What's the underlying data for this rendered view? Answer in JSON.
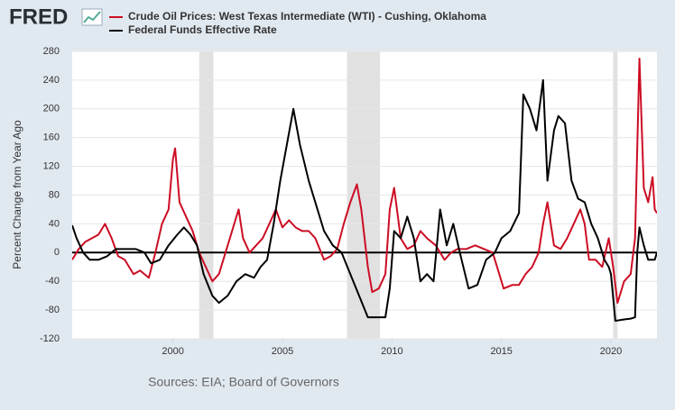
{
  "logo": "FRED",
  "chart_data": {
    "type": "line",
    "source": "Sources: EIA; Board of Governors",
    "ylabel": "Percent Change from Year Ago",
    "xlim": [
      1995.4,
      2022.1
    ],
    "xticks": [
      2000,
      2005,
      2010,
      2015,
      2020
    ],
    "ylim": [
      -120,
      280
    ],
    "yticks": [
      -120,
      -80,
      -40,
      0,
      40,
      80,
      120,
      160,
      200,
      240,
      280
    ],
    "grid": true,
    "recession_color": "#e1e1e1",
    "recessions": [
      [
        2001.2,
        2001.85
      ],
      [
        2007.95,
        2009.45
      ],
      [
        2020.1,
        2020.3
      ]
    ],
    "series": [
      {
        "name": "Crude Oil Prices: West Texas Intermediate (WTI) - Cushing, Oklahoma",
        "color": "#cc0d24",
        "x": [
          1995.4,
          1995.7,
          1996.0,
          1996.3,
          1996.6,
          1996.9,
          1997.2,
          1997.5,
          1997.8,
          1998.2,
          1998.5,
          1998.9,
          1999.2,
          1999.5,
          1999.8,
          2000.0,
          2000.1,
          2000.3,
          2000.6,
          2000.9,
          2001.2,
          2001.5,
          2001.8,
          2002.1,
          2002.4,
          2002.7,
          2003.0,
          2003.2,
          2003.5,
          2003.8,
          2004.1,
          2004.4,
          2004.7,
          2005.0,
          2005.3,
          2005.6,
          2005.9,
          2006.2,
          2006.5,
          2006.9,
          2007.2,
          2007.5,
          2007.8,
          2008.1,
          2008.4,
          2008.6,
          2008.9,
          2009.1,
          2009.4,
          2009.7,
          2009.9,
          2010.1,
          2010.4,
          2010.7,
          2011.0,
          2011.3,
          2011.6,
          2012.0,
          2012.4,
          2012.7,
          2013.0,
          2013.4,
          2013.8,
          2014.2,
          2014.6,
          2014.9,
          2015.1,
          2015.5,
          2015.8,
          2016.1,
          2016.4,
          2016.7,
          2016.9,
          2017.1,
          2017.4,
          2017.7,
          2018.0,
          2018.3,
          2018.6,
          2018.8,
          2019.0,
          2019.3,
          2019.6,
          2019.9,
          2020.1,
          2020.3,
          2020.6,
          2020.9,
          2021.1,
          2021.3,
          2021.5,
          2021.7,
          2021.9,
          2022.0,
          2022.1
        ],
        "values": [
          -10,
          5,
          15,
          20,
          25,
          40,
          20,
          -5,
          -10,
          -30,
          -25,
          -35,
          0,
          40,
          60,
          130,
          145,
          70,
          50,
          30,
          0,
          -20,
          -40,
          -30,
          0,
          30,
          60,
          20,
          0,
          10,
          20,
          40,
          60,
          35,
          45,
          35,
          30,
          30,
          20,
          -10,
          -5,
          5,
          40,
          70,
          95,
          60,
          -20,
          -55,
          -50,
          -30,
          60,
          90,
          20,
          5,
          10,
          30,
          20,
          10,
          -10,
          0,
          5,
          5,
          10,
          5,
          0,
          -30,
          -50,
          -45,
          -45,
          -30,
          -20,
          0,
          40,
          70,
          10,
          5,
          20,
          40,
          60,
          40,
          -10,
          -10,
          -20,
          20,
          -20,
          -70,
          -40,
          -30,
          20,
          270,
          90,
          70,
          105,
          60,
          55
        ]
      },
      {
        "name": "Federal Funds Effective Rate",
        "color": "#000000",
        "x": [
          1995.4,
          1995.6,
          1995.9,
          1996.2,
          1996.6,
          1997.0,
          1997.4,
          1997.8,
          1998.3,
          1998.7,
          1999.0,
          1999.4,
          1999.8,
          2000.2,
          2000.5,
          2000.8,
          2001.1,
          2001.4,
          2001.8,
          2002.1,
          2002.5,
          2002.9,
          2003.3,
          2003.7,
          2004.0,
          2004.3,
          2004.6,
          2004.9,
          2005.2,
          2005.5,
          2005.8,
          2006.2,
          2006.6,
          2006.9,
          2007.3,
          2007.7,
          2008.1,
          2008.5,
          2008.9,
          2009.3,
          2009.7,
          2009.9,
          2010.1,
          2010.4,
          2010.7,
          2011.0,
          2011.3,
          2011.6,
          2011.9,
          2012.2,
          2012.5,
          2012.8,
          2013.1,
          2013.5,
          2013.9,
          2014.3,
          2014.7,
          2015.0,
          2015.4,
          2015.8,
          2016.0,
          2016.3,
          2016.6,
          2016.9,
          2017.1,
          2017.4,
          2017.6,
          2017.9,
          2018.2,
          2018.5,
          2018.8,
          2019.1,
          2019.4,
          2019.7,
          2019.9,
          2020.0,
          2020.2,
          2020.6,
          2020.9,
          2021.1,
          2021.2,
          2021.3,
          2021.5,
          2021.7,
          2022.0,
          2022.1
        ],
        "values": [
          38,
          20,
          0,
          -10,
          -10,
          -5,
          5,
          5,
          5,
          0,
          -15,
          -10,
          10,
          25,
          35,
          25,
          10,
          -30,
          -60,
          -70,
          -60,
          -40,
          -30,
          -35,
          -20,
          -10,
          40,
          100,
          150,
          200,
          150,
          100,
          60,
          30,
          10,
          0,
          -30,
          -60,
          -90,
          -90,
          -90,
          -50,
          30,
          20,
          50,
          20,
          -40,
          -30,
          -40,
          60,
          10,
          40,
          0,
          -50,
          -45,
          -10,
          0,
          20,
          30,
          55,
          220,
          200,
          170,
          240,
          100,
          170,
          190,
          180,
          100,
          75,
          70,
          40,
          20,
          -10,
          -20,
          -30,
          -95,
          -93,
          -92,
          -90,
          0,
          35,
          10,
          -10,
          -10,
          0
        ]
      }
    ]
  }
}
